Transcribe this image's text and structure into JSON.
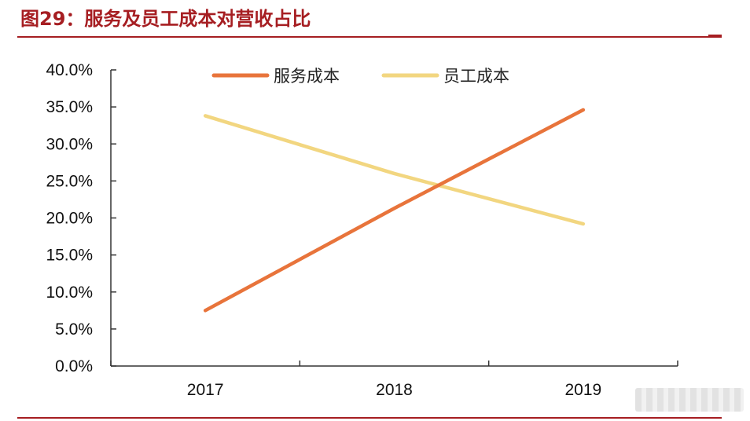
{
  "figure": {
    "title": "图29：服务及员工成本对营收占比"
  },
  "chart_data": {
    "type": "line",
    "title": "图29：服务及员工成本对营收占比",
    "x": [
      "2017",
      "2018",
      "2019"
    ],
    "series": [
      {
        "name": "服务成本",
        "values": [
          7.5,
          21.3,
          34.6
        ],
        "color": "#e8743b"
      },
      {
        "name": "员工成本",
        "values": [
          33.8,
          26.0,
          19.2
        ],
        "color": "#f2d680"
      }
    ],
    "yticks": [
      "0.0%",
      "5.0%",
      "10.0%",
      "15.0%",
      "20.0%",
      "25.0%",
      "30.0%",
      "35.0%",
      "40.0%"
    ],
    "ylim": [
      0,
      40
    ],
    "xlabel": "",
    "ylabel": "",
    "grid": false,
    "legend": "top-center"
  }
}
